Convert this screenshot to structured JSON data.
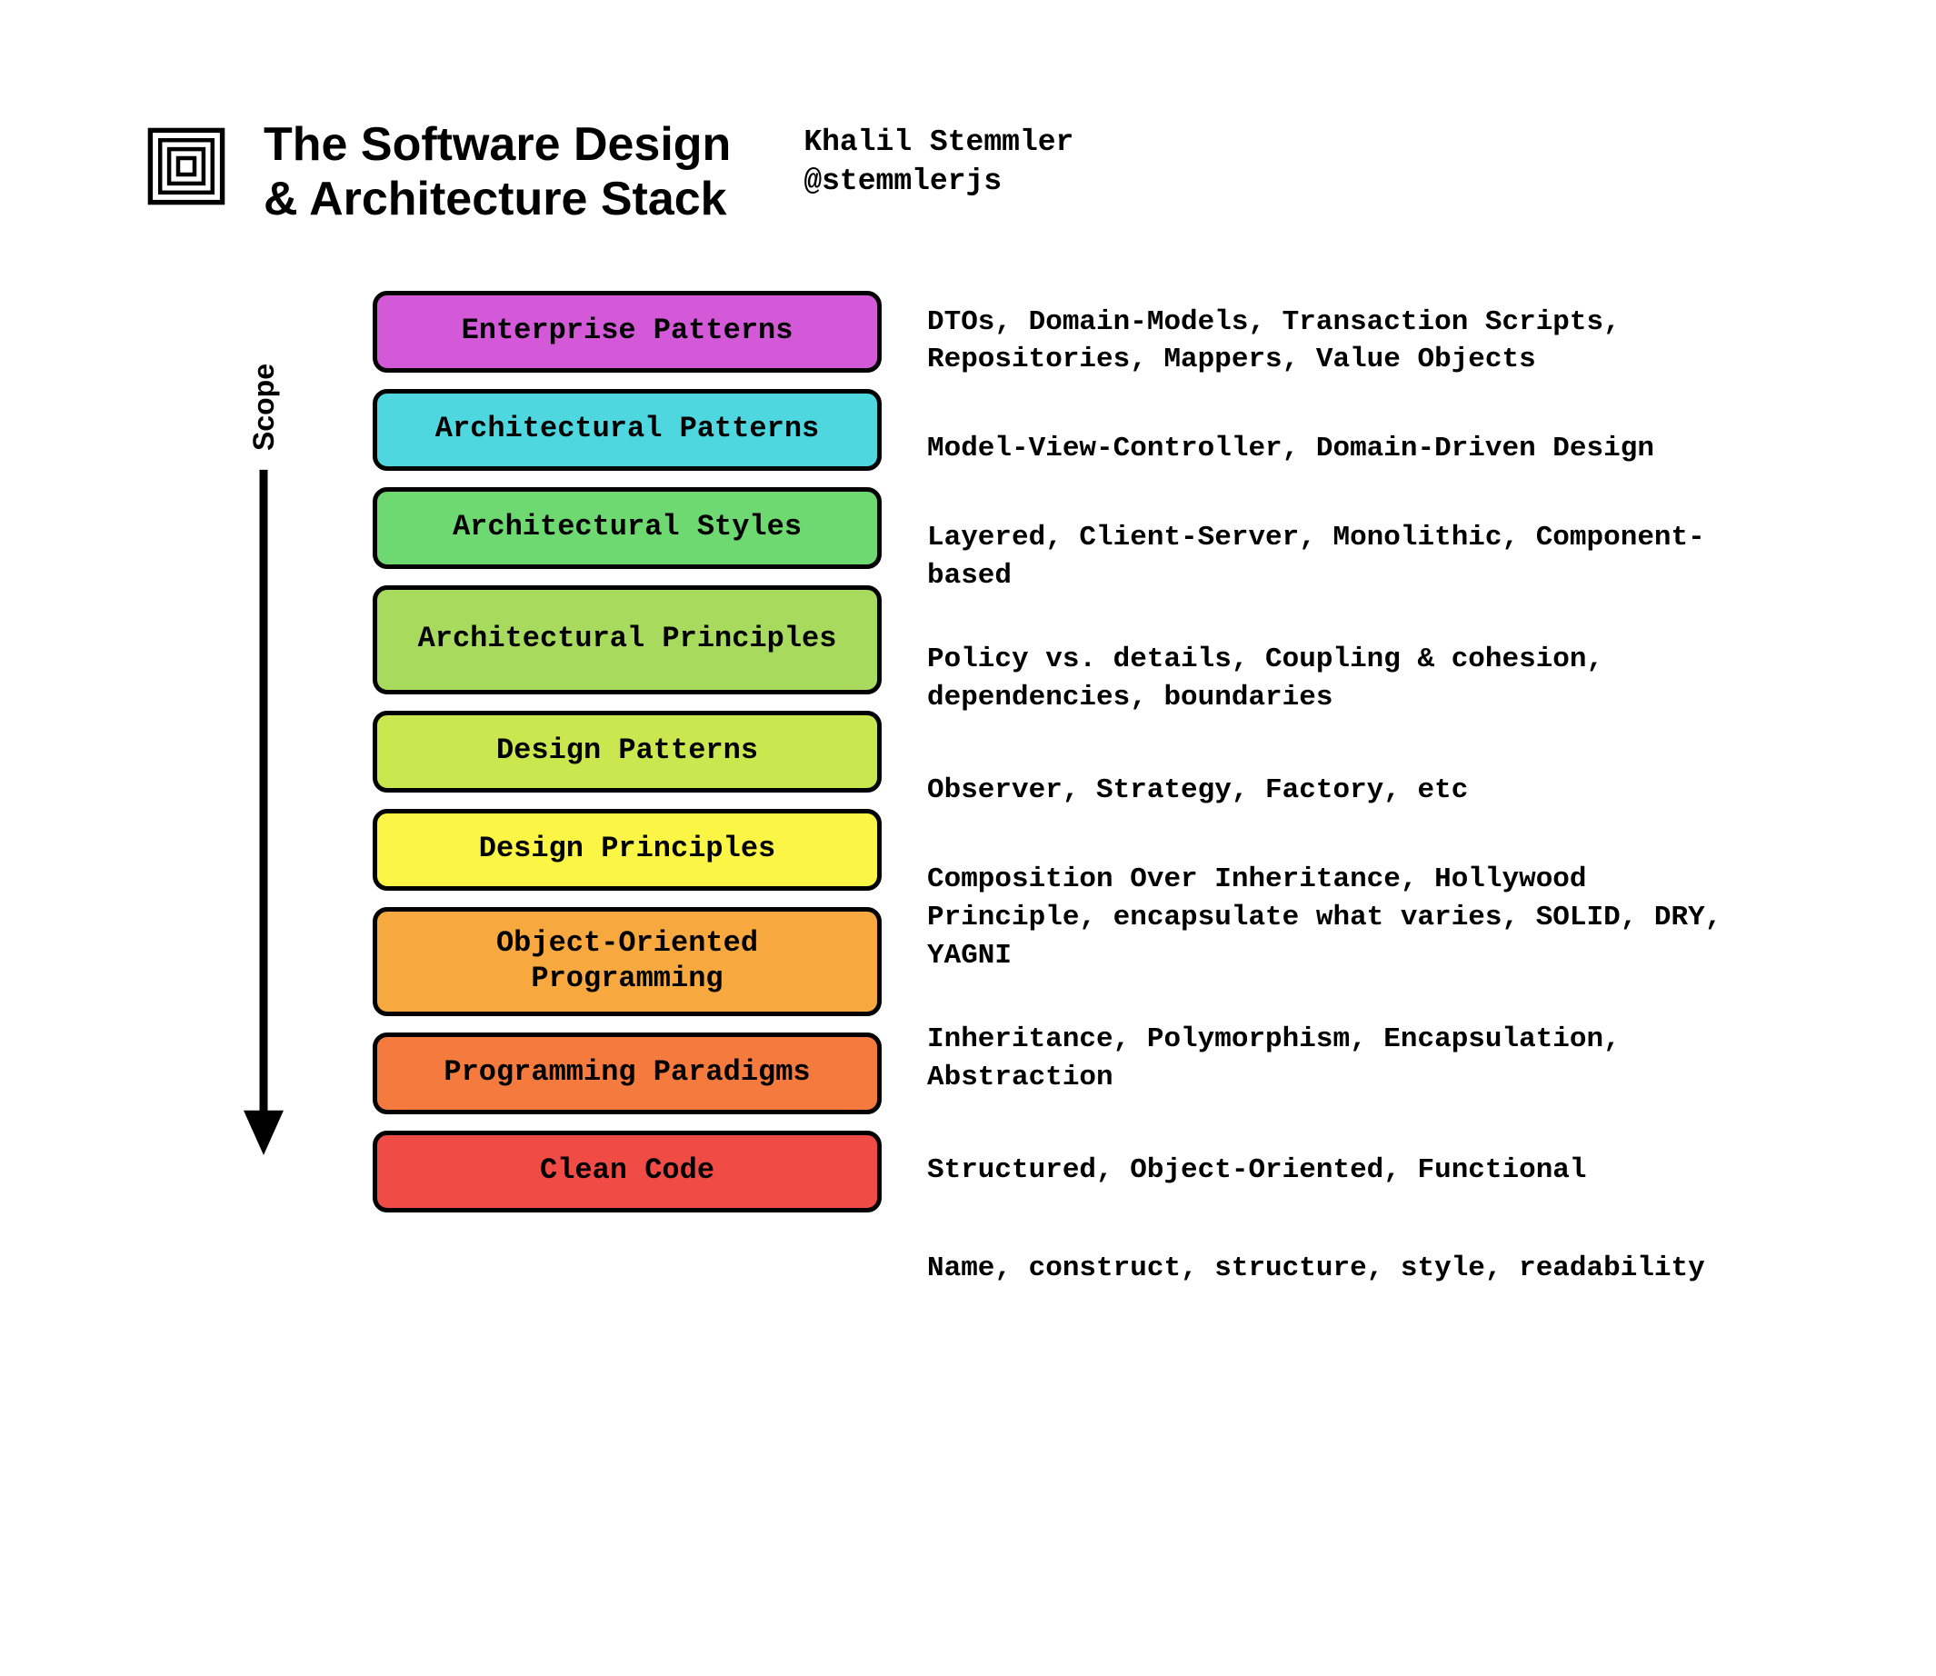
{
  "header": {
    "title_line1": "The Software Design",
    "title_line2": "& Architecture Stack",
    "author_name": "Khalil Stemmler",
    "author_handle": "@stemmlerjs"
  },
  "scope_label": "Scope",
  "arrow_color": "#000000",
  "background_color": "#ffffff",
  "box_border_color": "#000000",
  "box_border_width": 5,
  "box_border_radius": 16,
  "font_mono": "Consolas, Menlo, Monaco, Courier New, monospace",
  "font_sans": "-apple-system, Segoe UI, Helvetica Neue, Arial, sans-serif",
  "title_fontsize": 52,
  "box_label_fontsize": 32,
  "desc_fontsize": 31,
  "author_fontsize": 33,
  "layers": [
    {
      "label": "Enterprise Patterns",
      "color": "#d359d8",
      "description": "DTOs, Domain-Models, Transaction Scripts, Repositories, Mappers, Value Objects"
    },
    {
      "label": "Architectural Patterns",
      "color": "#4fd7e0",
      "description": "Model-View-Controller, Domain-Driven Design"
    },
    {
      "label": "Architectural Styles",
      "color": "#6fd971",
      "description": "Layered, Client-Server, Monolithic, Component-based"
    },
    {
      "label": "Architectural Principles",
      "color": "#a8db5d",
      "description": "Policy vs. details, Coupling & cohesion, dependencies, boundaries"
    },
    {
      "label": "Design Patterns",
      "color": "#c9e850",
      "description": "Observer, Strategy, Factory, etc"
    },
    {
      "label": "Design Principles",
      "color": "#fbf546",
      "description": "Composition Over Inheritance, Hollywood Principle, encapsulate what varies, SOLID, DRY, YAGNI"
    },
    {
      "label": "Object-Oriented Programming",
      "color": "#f7a940",
      "description": "Inheritance, Polymorphism, Encapsulation, Abstraction"
    },
    {
      "label": "Programming Paradigms",
      "color": "#f47a3e",
      "description": "Structured, Object-Oriented, Functional"
    },
    {
      "label": "Clean Code",
      "color": "#f14b46",
      "description": "Name, construct, structure, style, readability"
    }
  ]
}
